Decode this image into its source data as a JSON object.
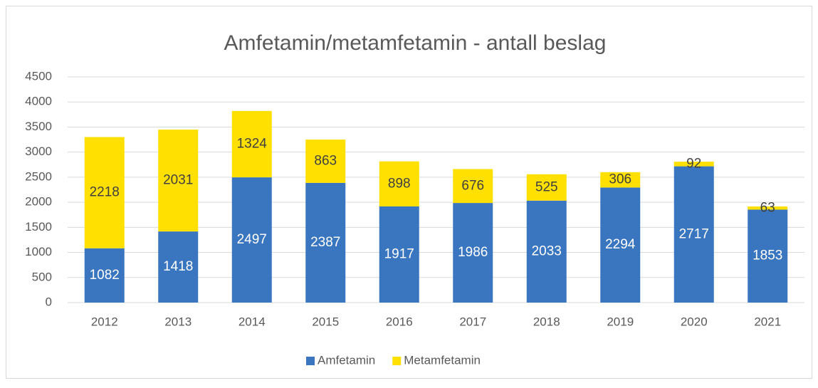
{
  "chart_data": {
    "type": "bar",
    "stacked": true,
    "title": "Amfetamin/metamfetamin - antall beslag",
    "categories": [
      "2012",
      "2013",
      "2014",
      "2015",
      "2016",
      "2017",
      "2018",
      "2019",
      "2020",
      "2021"
    ],
    "series": [
      {
        "name": "Amfetamin",
        "color": "#3a76c0",
        "values": [
          1082,
          1418,
          2497,
          2387,
          1917,
          1986,
          2033,
          2294,
          2717,
          1853
        ]
      },
      {
        "name": "Metamfetamin",
        "color": "#ffe000",
        "values": [
          2218,
          2031,
          1324,
          863,
          898,
          676,
          525,
          306,
          92,
          63
        ]
      }
    ],
    "ylim": [
      0,
      4500
    ],
    "yticks": [
      0,
      500,
      1000,
      1500,
      2000,
      2500,
      3000,
      3500,
      4000,
      4500
    ],
    "grid": true,
    "legend": "bottom"
  }
}
